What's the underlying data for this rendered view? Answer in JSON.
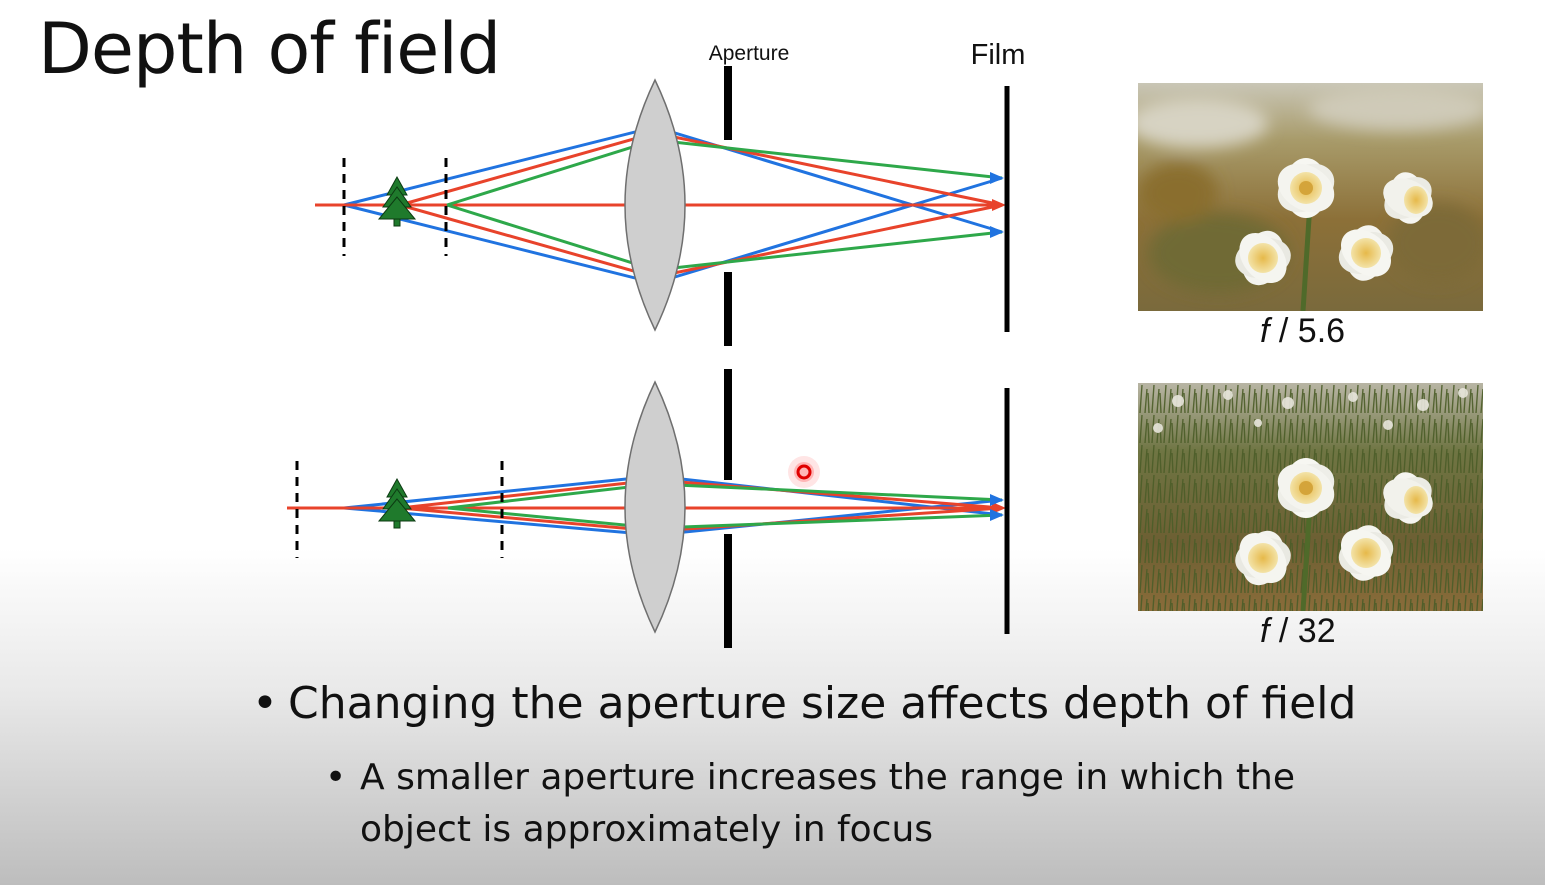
{
  "slide": {
    "title": "Depth of field"
  },
  "diagram": {
    "aperture_label": "Aperture",
    "film_label": "Film",
    "ray_colors": {
      "red": "#e8432b",
      "green": "#2ea84a",
      "blue": "#2073e0"
    },
    "lens_fill": "#cfcfcf",
    "tree_color": "#1f7a2c",
    "pointer_color": "#ff2a2a"
  },
  "photos": [
    {
      "f_symbol": "f",
      "f_value": "/ 5.6",
      "background": "blurred"
    },
    {
      "f_symbol": "f",
      "f_value": "/ 32",
      "background": "sharp"
    }
  ],
  "bullets": {
    "main": "Changing the aperture size affects depth of field",
    "sub": "A smaller aperture increases the range in which the object is approximately in focus",
    "marker": "•"
  }
}
